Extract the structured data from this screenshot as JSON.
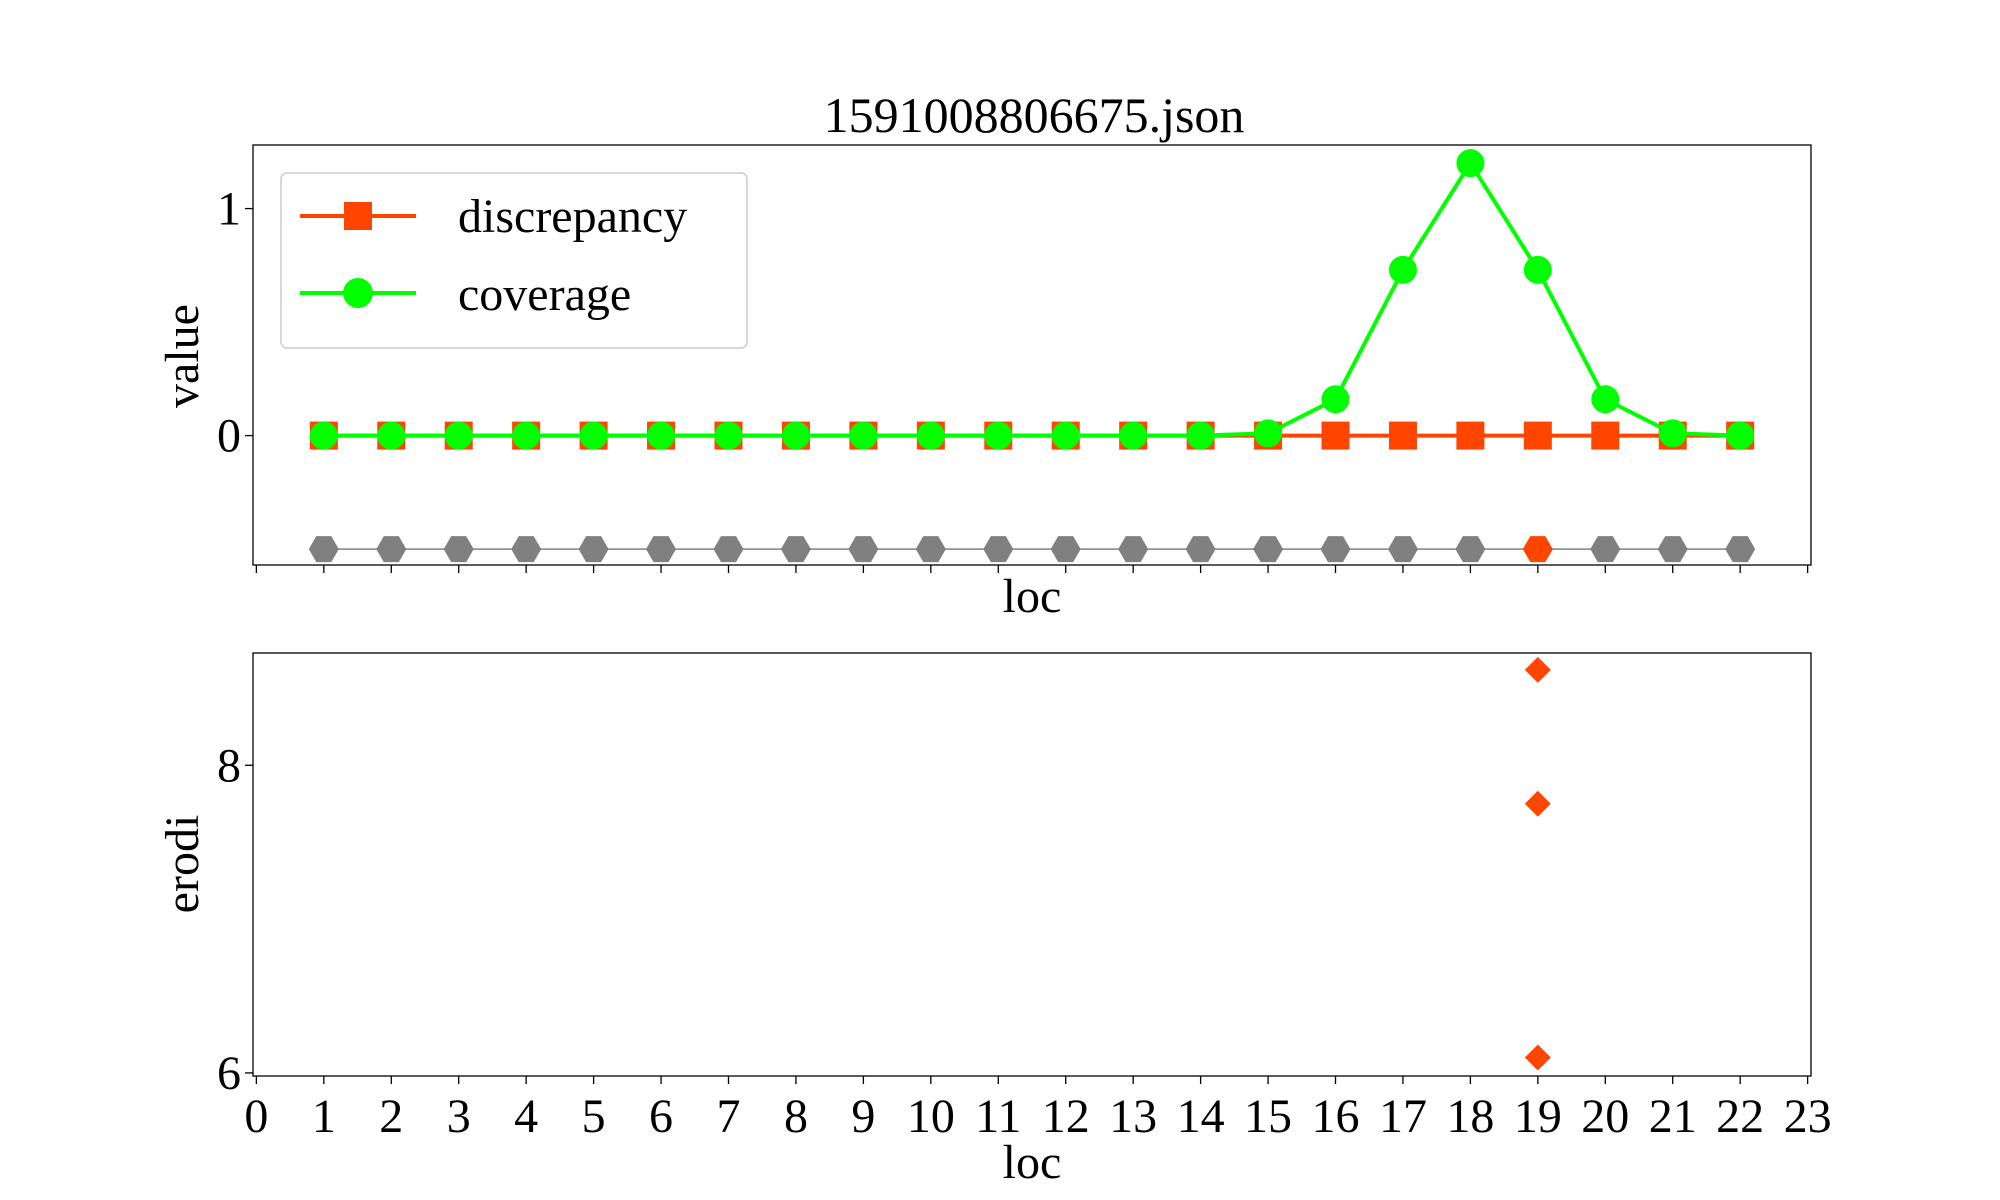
{
  "chart_data": [
    {
      "type": "line",
      "title": "1591008806675.json",
      "xlabel": "loc",
      "ylabel": "value",
      "xlim": [
        -0.05,
        23.05
      ],
      "ylim": [
        -0.57,
        1.28
      ],
      "y_ticks": [
        0,
        1
      ],
      "x_ticks": [
        0,
        1,
        2,
        3,
        4,
        5,
        6,
        7,
        8,
        9,
        10,
        11,
        12,
        13,
        14,
        15,
        16,
        17,
        18,
        19,
        20,
        21,
        22,
        23
      ],
      "x_tick_labels_visible": false,
      "grid": false,
      "legend_position": "top-left",
      "series": [
        {
          "name": "discrepancy",
          "marker": "square",
          "color": "#ff4500",
          "x": [
            1,
            2,
            3,
            4,
            5,
            6,
            7,
            8,
            9,
            10,
            11,
            12,
            13,
            14,
            15,
            16,
            17,
            18,
            19,
            20,
            21,
            22
          ],
          "values": [
            0,
            0,
            0,
            0,
            0,
            0,
            0,
            0,
            0,
            0,
            0,
            0,
            0,
            0,
            0,
            0,
            0,
            0,
            0,
            0,
            0,
            0
          ]
        },
        {
          "name": "coverage",
          "marker": "circle",
          "color": "#00ff00",
          "x": [
            1,
            2,
            3,
            4,
            5,
            6,
            7,
            8,
            9,
            10,
            11,
            12,
            13,
            14,
            15,
            16,
            17,
            18,
            19,
            20,
            21,
            22
          ],
          "values": [
            0,
            0,
            0,
            0,
            0,
            0,
            0,
            0,
            0,
            0,
            0,
            0,
            0,
            0,
            0.01,
            0.16,
            0.73,
            1.2,
            0.73,
            0.16,
            0.01,
            0
          ]
        },
        {
          "marker": "hexagon",
          "color": "#808080",
          "highlight_color": "#ff4500",
          "x": [
            1,
            2,
            3,
            4,
            5,
            6,
            7,
            8,
            9,
            10,
            11,
            12,
            13,
            14,
            15,
            16,
            17,
            18,
            19,
            20,
            21,
            22
          ],
          "values": [
            -0.5,
            -0.5,
            -0.5,
            -0.5,
            -0.5,
            -0.5,
            -0.5,
            -0.5,
            -0.5,
            -0.5,
            -0.5,
            -0.5,
            -0.5,
            -0.5,
            -0.5,
            -0.5,
            -0.5,
            -0.5,
            -0.5,
            -0.5,
            -0.5,
            -0.5
          ],
          "highlight_x": [
            19
          ]
        }
      ]
    },
    {
      "type": "scatter",
      "xlabel": "loc",
      "ylabel": "erodi",
      "xlim": [
        -0.05,
        23.05
      ],
      "ylim": [
        5.98,
        8.73
      ],
      "y_ticks": [
        6,
        8
      ],
      "x_ticks": [
        0,
        1,
        2,
        3,
        4,
        5,
        6,
        7,
        8,
        9,
        10,
        11,
        12,
        13,
        14,
        15,
        16,
        17,
        18,
        19,
        20,
        21,
        22,
        23
      ],
      "grid": false,
      "series": [
        {
          "marker": "diamond",
          "color": "#ff4500",
          "x": [
            19,
            19,
            19
          ],
          "values": [
            8.62,
            7.75,
            6.1
          ]
        }
      ]
    }
  ]
}
